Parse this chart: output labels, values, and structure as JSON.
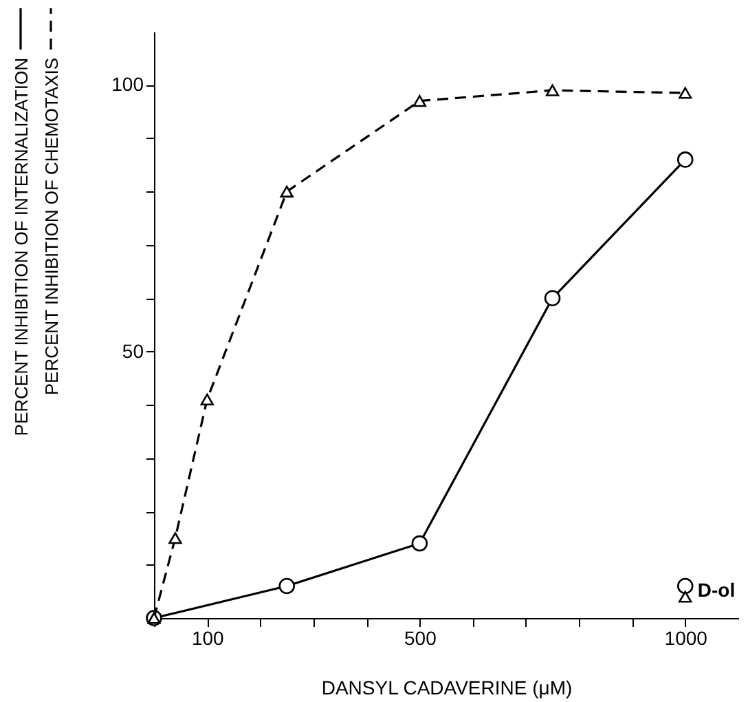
{
  "chart_data": {
    "type": "line",
    "xlabel": "DANSYL CADAVERINE (μM)",
    "series": [
      {
        "name": "PERCENT INHIBITION OF INTERNALIZATION",
        "color": "#000000",
        "line_style": "solid",
        "marker": "circle",
        "x": [
          0,
          250,
          500,
          750,
          1000
        ],
        "values": [
          0,
          6,
          14,
          60,
          86
        ]
      },
      {
        "name": "PERCENT INHIBITION OF CHEMOTAXIS",
        "color": "#000000",
        "line_style": "dashed",
        "marker": "triangle",
        "x": [
          0,
          40,
          100,
          250,
          500,
          750,
          1000
        ],
        "values": [
          0,
          15,
          41,
          80,
          97,
          99,
          98.5
        ]
      },
      {
        "type": "scatter",
        "color": "#000000",
        "marker": "circle",
        "x": [
          1000
        ],
        "values": [
          6
        ]
      },
      {
        "type": "scatter",
        "color": "#000000",
        "marker": "triangle",
        "x": [
          1000
        ],
        "values": [
          4
        ]
      }
    ],
    "annotations": [
      {
        "text": "D-ol",
        "x": 1000,
        "y": 5
      }
    ],
    "xlim": [
      0,
      1100
    ],
    "xticks": [
      {
        "value": 0,
        "label": null
      },
      100,
      {
        "value": 200,
        "label": null
      },
      {
        "value": 300,
        "label": null
      },
      {
        "value": 400,
        "label": null
      },
      500,
      {
        "value": 600,
        "label": null
      },
      {
        "value": 700,
        "label": null
      },
      {
        "value": 800,
        "label": null
      },
      {
        "value": 900,
        "label": null
      },
      1000
    ],
    "ylim": [
      0,
      110
    ],
    "yticks": [
      {
        "value": 0,
        "label": null
      },
      {
        "value": 10,
        "label": null
      },
      {
        "value": 20,
        "label": null
      },
      {
        "value": 30,
        "label": null
      },
      {
        "value": 40,
        "label": null
      },
      50,
      {
        "value": 60,
        "label": null
      },
      {
        "value": 70,
        "label": null
      },
      {
        "value": 80,
        "label": null
      },
      {
        "value": 90,
        "label": null
      },
      100
    ],
    "grid": false,
    "legend": "left"
  }
}
